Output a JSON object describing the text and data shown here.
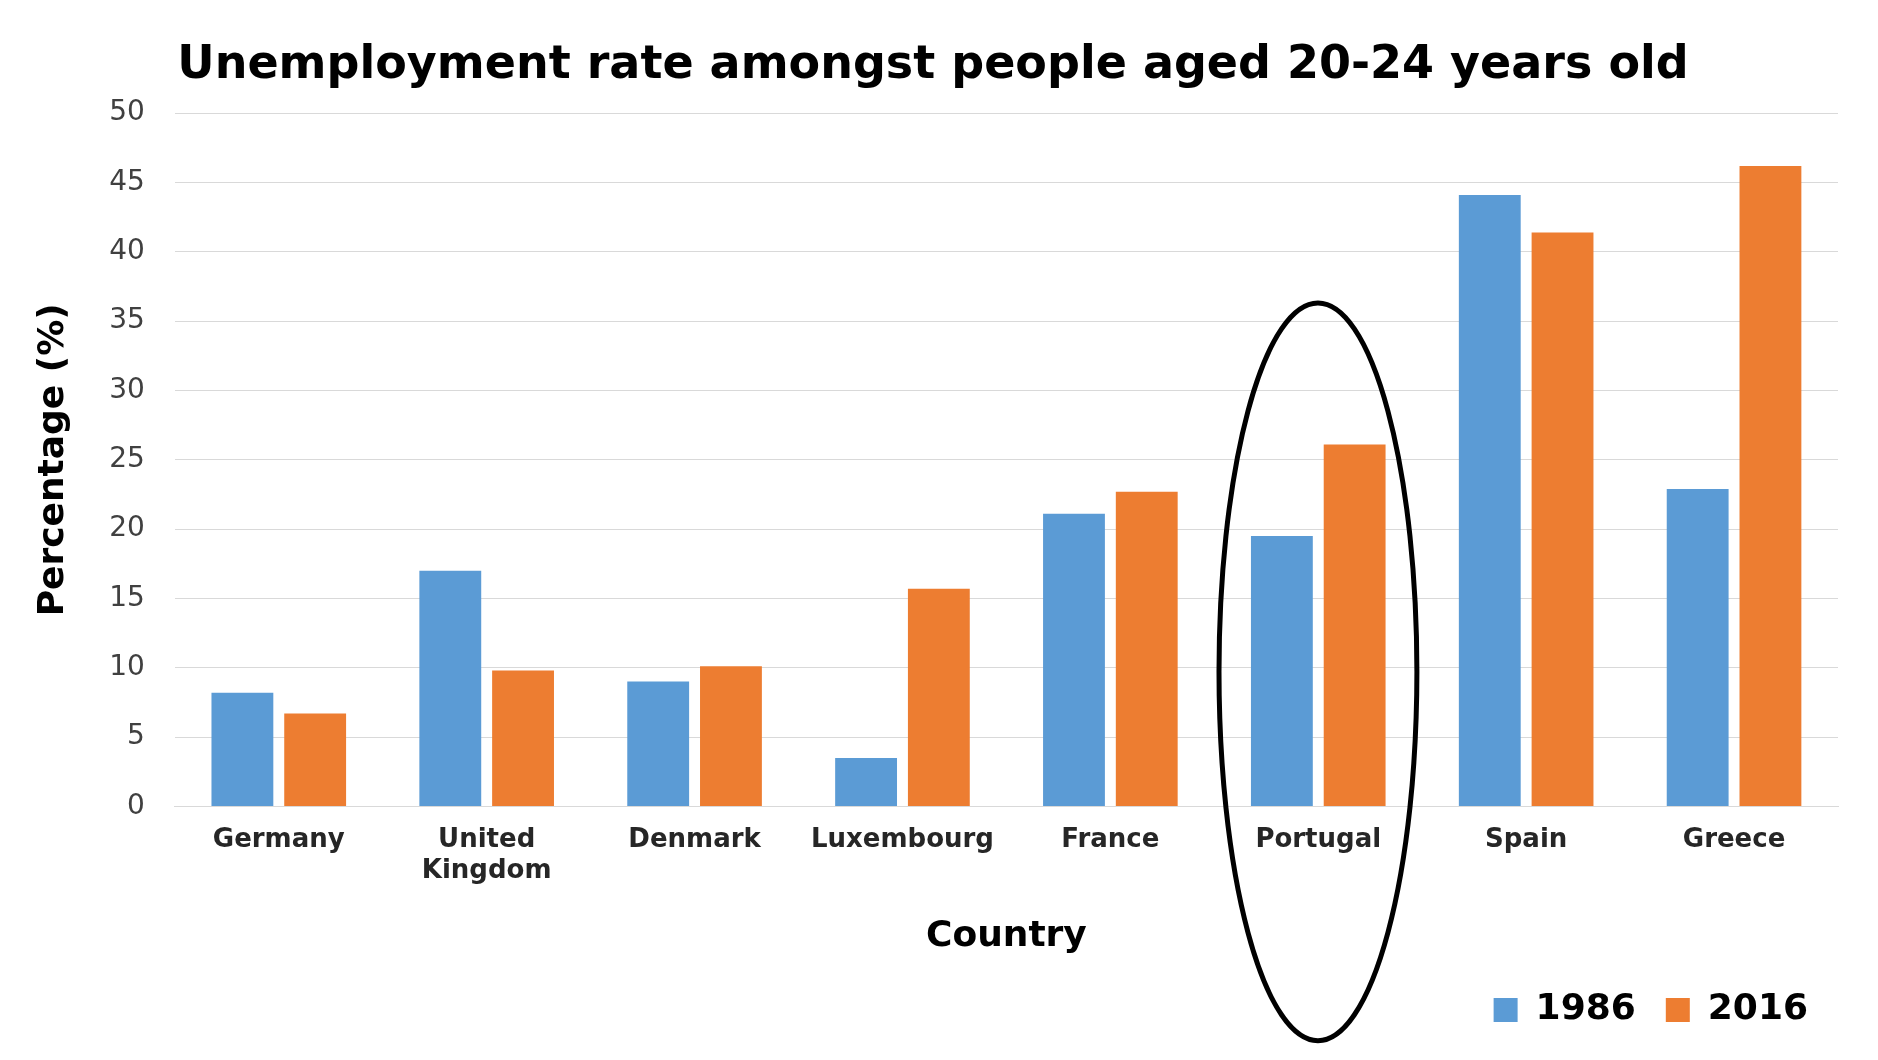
{
  "chart_data": {
    "type": "bar",
    "title": "Unemployment rate amongst people aged 20-24 years old",
    "xlabel": "Country",
    "ylabel": "Percentage (%)",
    "categories": [
      "Germany",
      "United Kingdom",
      "Denmark",
      "Luxembourg",
      "France",
      "Portugal",
      "Spain",
      "Greece"
    ],
    "series": [
      {
        "name": "1986",
        "color": "#5b9bd5",
        "values": [
          8.2,
          17.0,
          9.0,
          3.5,
          21.1,
          19.5,
          44.1,
          22.9
        ]
      },
      {
        "name": "2016",
        "color": "#ed7d31",
        "values": [
          6.7,
          9.8,
          10.1,
          15.7,
          22.7,
          26.1,
          41.4,
          46.2
        ]
      }
    ],
    "ylim": [
      0,
      50
    ],
    "yticks": [
      0,
      5,
      10,
      15,
      20,
      25,
      30,
      35,
      40,
      45,
      50
    ],
    "grid": "y",
    "legend": "bottom right"
  }
}
